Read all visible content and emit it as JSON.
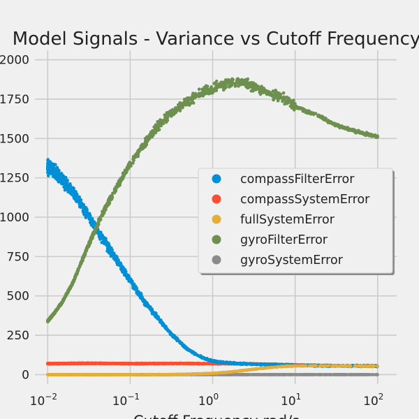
{
  "chart_data": {
    "type": "scatter",
    "title": "Model Signals - Variance vs Cutoff Frequency",
    "xlabel": "Cutoff Frequency rad/s",
    "ylabel": "",
    "x_scale": "log",
    "xlim": [
      0.007,
      170
    ],
    "ylim": [
      -60,
      2060
    ],
    "x_ticks": [
      0.01,
      0.1,
      1,
      10,
      100
    ],
    "x_tick_labels": [
      {
        "base": "10",
        "exp": "−2"
      },
      {
        "base": "10",
        "exp": "−1"
      },
      {
        "base": "10",
        "exp": "0"
      },
      {
        "base": "10",
        "exp": "1"
      },
      {
        "base": "10",
        "exp": "2"
      }
    ],
    "y_ticks": [
      0,
      250,
      500,
      750,
      1000,
      1250,
      1500,
      1750,
      2000
    ],
    "grid": true,
    "legend_position": "center-right",
    "series": [
      {
        "name": "compassFilterError",
        "color": "#008fd5",
        "x": [
          0.01,
          0.012,
          0.015,
          0.02,
          0.025,
          0.03,
          0.04,
          0.05,
          0.07,
          0.1,
          0.15,
          0.2,
          0.3,
          0.5,
          0.7,
          1,
          1.5,
          2,
          3,
          5,
          10,
          20,
          50,
          100
        ],
        "y": [
          1320,
          1290,
          1240,
          1160,
          1090,
          1020,
          920,
          840,
          720,
          600,
          460,
          380,
          270,
          160,
          115,
          85,
          75,
          70,
          68,
          65,
          60,
          57,
          55,
          55
        ]
      },
      {
        "name": "compassSystemError",
        "color": "#fc4f30",
        "x": [
          0.01,
          0.03,
          0.1,
          0.3,
          1,
          3,
          10,
          30,
          100
        ],
        "y": [
          70,
          72,
          70,
          71,
          70,
          68,
          62,
          57,
          53
        ]
      },
      {
        "name": "fullSystemError",
        "color": "#e5ae38",
        "x": [
          0.01,
          0.1,
          0.3,
          0.5,
          1,
          1.5,
          2,
          3,
          5,
          7,
          10,
          20,
          50,
          100
        ],
        "y": [
          0,
          0,
          1,
          3,
          8,
          15,
          22,
          33,
          45,
          52,
          55,
          56,
          55,
          53
        ]
      },
      {
        "name": "gyroFilterError",
        "color": "#6d904f",
        "x": [
          0.01,
          0.012,
          0.015,
          0.02,
          0.025,
          0.03,
          0.04,
          0.05,
          0.07,
          0.1,
          0.15,
          0.2,
          0.3,
          0.5,
          0.7,
          1,
          1.5,
          2,
          3,
          5,
          7,
          10,
          20,
          30,
          50,
          100
        ],
        "y": [
          340,
          390,
          460,
          580,
          700,
          800,
          950,
          1060,
          1200,
          1340,
          1470,
          1560,
          1650,
          1740,
          1790,
          1820,
          1850,
          1860,
          1830,
          1790,
          1760,
          1700,
          1640,
          1590,
          1550,
          1510
        ]
      },
      {
        "name": "gyroSystemError",
        "color": "#8b8b8b",
        "x": [
          0.01,
          0.1,
          1,
          10,
          100
        ],
        "y": [
          0,
          0,
          0,
          0,
          0
        ]
      }
    ]
  }
}
